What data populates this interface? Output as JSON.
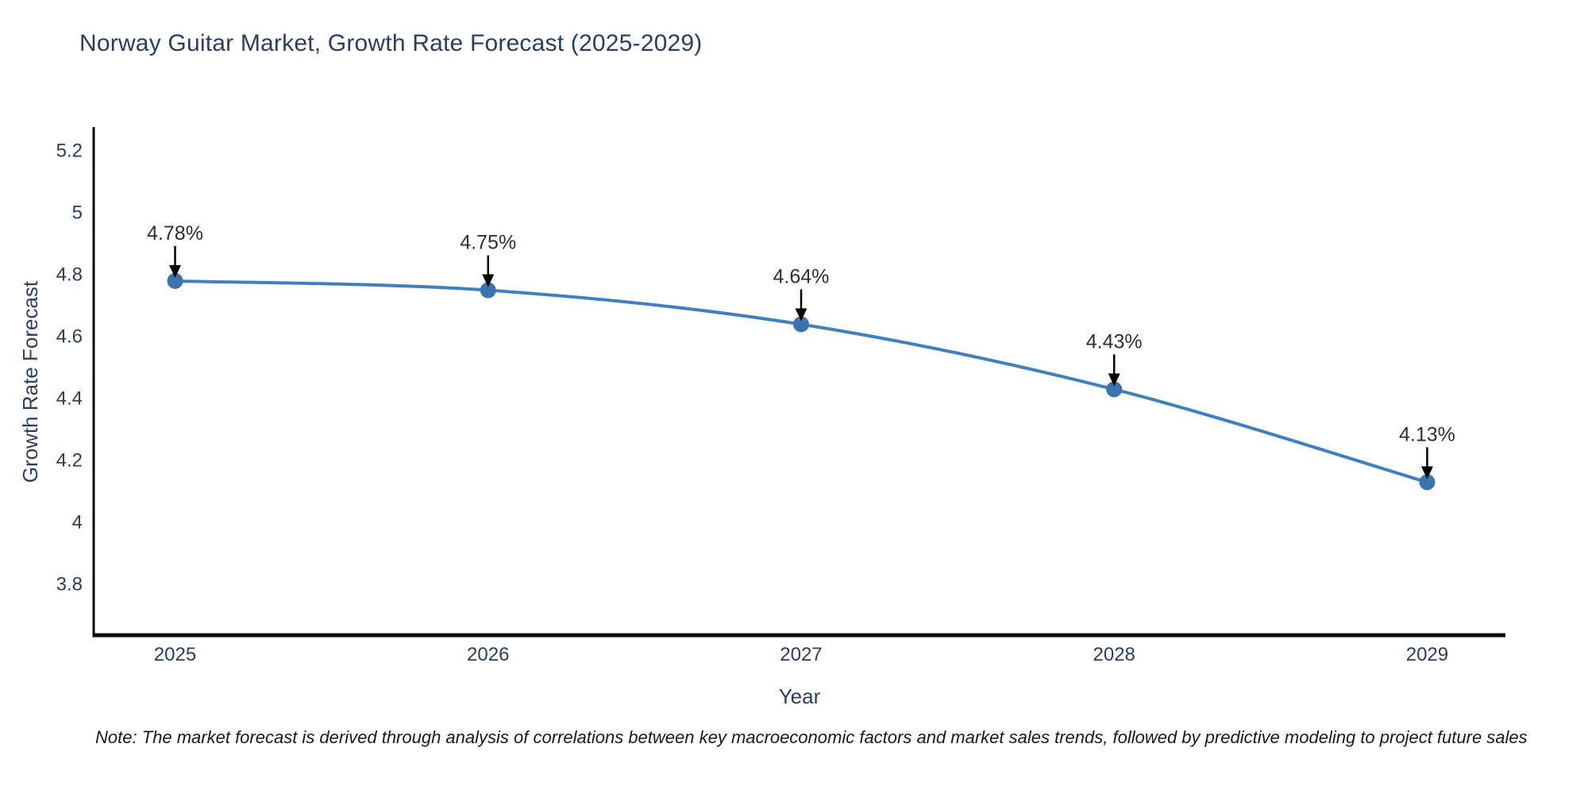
{
  "note": "Note: The market forecast is derived through analysis of correlations between key macroeconomic factors and market sales trends, followed by predictive modeling to project future sales",
  "chart_data": {
    "type": "line",
    "title": "Norway Guitar Market, Growth Rate Forecast (2025-2029)",
    "xlabel": "Year",
    "ylabel": "Growth Rate Forecast",
    "x": [
      2025,
      2026,
      2027,
      2028,
      2029
    ],
    "series": [
      {
        "name": "Growth Rate Forecast",
        "values": [
          4.78,
          4.75,
          4.64,
          4.43,
          4.13
        ]
      }
    ],
    "point_labels": [
      "4.78%",
      "4.75%",
      "4.64%",
      "4.43%",
      "4.13%"
    ],
    "y_ticks": [
      3.8,
      4,
      4.2,
      4.4,
      4.6,
      4.8,
      5,
      5.2
    ],
    "ylim": [
      3.636,
      5.277
    ],
    "xlim": [
      2024.74,
      2029.25
    ],
    "grid": false,
    "legend_position": "none",
    "annotation_style": "arrow-down",
    "colors": {
      "line": "#4180bc",
      "marker": "#3b74ad",
      "axis_line": "#0b0b0b",
      "axis_text": "#2a3f5f",
      "annotation_text": "#2f2f2f",
      "annotation_arrow": "#000000",
      "note_text": "#1a1a1a",
      "background": "#ffffff"
    }
  }
}
